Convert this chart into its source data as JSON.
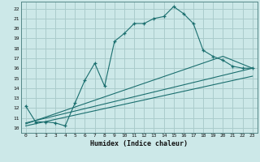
{
  "xlabel": "Humidex (Indice chaleur)",
  "bg_color": "#cce8e8",
  "grid_color": "#aacccc",
  "line_color": "#1a6e6e",
  "xlim": [
    -0.5,
    23.5
  ],
  "ylim": [
    9.5,
    22.7
  ],
  "xticks": [
    0,
    1,
    2,
    3,
    4,
    5,
    6,
    7,
    8,
    9,
    10,
    11,
    12,
    13,
    14,
    15,
    16,
    17,
    18,
    19,
    20,
    21,
    22,
    23
  ],
  "yticks": [
    10,
    11,
    12,
    13,
    14,
    15,
    16,
    17,
    18,
    19,
    20,
    21,
    22
  ],
  "line1_x": [
    0,
    1,
    2,
    3,
    4,
    5,
    6,
    7,
    8,
    9,
    10,
    11,
    12,
    13,
    14,
    15,
    16,
    17,
    18,
    19,
    20,
    21,
    22,
    23
  ],
  "line1_y": [
    12.2,
    10.6,
    10.6,
    10.5,
    10.2,
    12.5,
    14.8,
    16.5,
    14.2,
    18.7,
    19.5,
    20.5,
    20.5,
    21.0,
    21.2,
    22.2,
    21.5,
    20.5,
    17.8,
    17.2,
    16.8,
    16.2,
    16.0,
    16.0
  ],
  "line2_x": [
    0,
    20,
    23
  ],
  "line2_y": [
    10.4,
    17.2,
    16.0
  ],
  "line3_x": [
    0,
    23
  ],
  "line3_y": [
    10.2,
    15.2
  ],
  "line4_x": [
    0,
    23
  ],
  "line4_y": [
    10.5,
    16.0
  ]
}
